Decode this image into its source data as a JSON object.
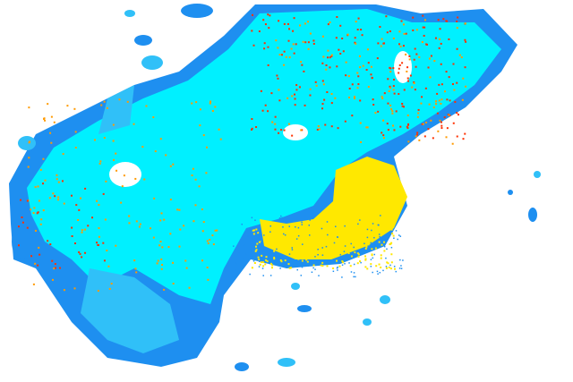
{
  "colors": {
    "background": "#ffffff",
    "edge_blue": "#1e8ff0",
    "light_blue": "#30c0f8",
    "cyan": "#00f0ff",
    "yellow": "#ffe800",
    "orange": "#ff9a00",
    "red": "#ff3000"
  },
  "legend": []
}
